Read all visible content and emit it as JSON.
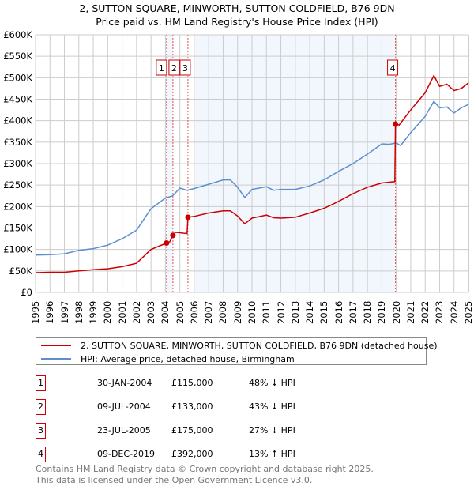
{
  "chart_data": {
    "type": "line",
    "title": "2, SUTTON SQUARE, MINWORTH, SUTTON COLDFIELD, B76 9DN",
    "subtitle": "Price paid vs. HM Land Registry's House Price Index (HPI)",
    "xlim": [
      1995,
      2025
    ],
    "ylim": [
      0,
      600000
    ],
    "x_ticks": [
      "1995",
      "1996",
      "1997",
      "1998",
      "1999",
      "2000",
      "2001",
      "2002",
      "2003",
      "2004",
      "2005",
      "2006",
      "2007",
      "2008",
      "2009",
      "2010",
      "2011",
      "2012",
      "2013",
      "2014",
      "2015",
      "2016",
      "2017",
      "2018",
      "2019",
      "2020",
      "2021",
      "2022",
      "2023",
      "2024",
      "2025"
    ],
    "y_ticks": [
      {
        "v": 0,
        "label": "£0"
      },
      {
        "v": 50000,
        "label": "£50K"
      },
      {
        "v": 100000,
        "label": "£100K"
      },
      {
        "v": 150000,
        "label": "£150K"
      },
      {
        "v": 200000,
        "label": "£200K"
      },
      {
        "v": 250000,
        "label": "£250K"
      },
      {
        "v": 300000,
        "label": "£300K"
      },
      {
        "v": 350000,
        "label": "£350K"
      },
      {
        "v": 400000,
        "label": "£400K"
      },
      {
        "v": 450000,
        "label": "£450K"
      },
      {
        "v": 500000,
        "label": "£500K"
      },
      {
        "v": 550000,
        "label": "£550K"
      },
      {
        "v": 600000,
        "label": "£600K"
      }
    ],
    "grid": true,
    "shaded_ranges": [
      [
        2004.08,
        2004.52
      ],
      [
        2006.06,
        2019.94
      ]
    ],
    "series": [
      {
        "name": "2, SUTTON SQUARE, MINWORTH, SUTTON COLDFIELD, B76 9DN (detached house)",
        "color": "#cc0000",
        "x": [
          1995,
          1996,
          1997,
          1998,
          1999,
          2000,
          2001,
          2002,
          2003,
          2004.08,
          2004.3,
          2004.52,
          2004.7,
          2005.5,
          2005.56,
          2006,
          2007,
          2008,
          2008.5,
          2009,
          2009.5,
          2010,
          2011,
          2011.5,
          2012,
          2013,
          2014,
          2015,
          2016,
          2017,
          2018,
          2019,
          2019.9,
          2019.94,
          2020.2,
          2021,
          2022,
          2022.6,
          2023,
          2023.5,
          2024,
          2024.5,
          2025
        ],
        "y": [
          46000,
          47000,
          47000,
          50000,
          53000,
          55000,
          60000,
          68000,
          100000,
          115000,
          118000,
          133000,
          140000,
          137000,
          175000,
          177000,
          185000,
          190000,
          190000,
          178000,
          160000,
          173000,
          180000,
          174000,
          173000,
          175000,
          185000,
          196000,
          212000,
          230000,
          245000,
          255000,
          258000,
          392000,
          390000,
          425000,
          465000,
          505000,
          480000,
          485000,
          470000,
          475000,
          488000
        ]
      },
      {
        "name": "HPI: Average price, detached house, Birmingham",
        "color": "#5b8fd0",
        "x": [
          1995,
          1996,
          1997,
          1998,
          1999,
          2000,
          2001,
          2002,
          2003,
          2004,
          2004.5,
          2005,
          2005.5,
          2006,
          2007,
          2008,
          2008.5,
          2009,
          2009.5,
          2010,
          2011,
          2011.5,
          2012,
          2013,
          2014,
          2015,
          2016,
          2017,
          2018,
          2019,
          2019.5,
          2020,
          2020.3,
          2021,
          2022,
          2022.6,
          2023,
          2023.5,
          2024,
          2024.5,
          2025
        ],
        "y": [
          87000,
          88000,
          90000,
          98000,
          102000,
          110000,
          125000,
          145000,
          195000,
          220000,
          225000,
          243000,
          238000,
          242000,
          252000,
          262000,
          262000,
          245000,
          221000,
          240000,
          246000,
          238000,
          240000,
          240000,
          248000,
          262000,
          282000,
          300000,
          322000,
          346000,
          345000,
          348000,
          342000,
          372000,
          410000,
          445000,
          430000,
          432000,
          418000,
          430000,
          438000
        ]
      }
    ],
    "sales": [
      {
        "label": "1",
        "x": 2004.08,
        "price": 115000,
        "date": "30-JAN-2004",
        "price_text": "£115,000",
        "hpi_text": "48% ↓ HPI"
      },
      {
        "label": "2",
        "x": 2004.52,
        "price": 133000,
        "date": "09-JUL-2004",
        "price_text": "£133,000",
        "hpi_text": "43% ↓ HPI"
      },
      {
        "label": "3",
        "x": 2005.56,
        "price": 175000,
        "date": "23-JUL-2005",
        "price_text": "£175,000",
        "hpi_text": "27% ↓ HPI"
      },
      {
        "label": "4",
        "x": 2019.94,
        "price": 392000,
        "date": "09-DEC-2019",
        "price_text": "£392,000",
        "hpi_text": "13% ↑ HPI"
      }
    ]
  },
  "footer": {
    "line1": "Contains HM Land Registry data © Crown copyright and database right 2025.",
    "line2": "This data is licensed under the Open Government Licence v3.0."
  }
}
